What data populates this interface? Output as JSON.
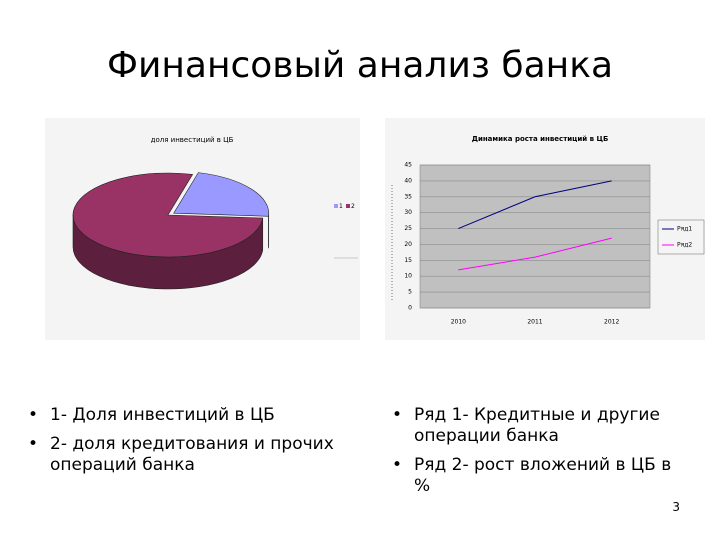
{
  "slide": {
    "title": "Финансовый анализ банка",
    "bullets_left": [
      "1- Доля инвестиций в ЦБ",
      "2- доля кредитования и прочих операций банка"
    ],
    "bullets_right": [
      "Ряд 1- Кредитные и другие операции банка",
      "Ряд 2- рост вложений в ЦБ в %"
    ],
    "page_number": 3
  },
  "chart_data": [
    {
      "type": "pie",
      "title": "доля инвестиций в ЦБ",
      "categories": [
        "1",
        "2"
      ],
      "values": [
        22,
        78
      ],
      "colors": [
        "#9999ff",
        "#993366"
      ],
      "legend": "right"
    },
    {
      "type": "line",
      "title": "Динамика роста инвестиций в ЦБ",
      "categories": [
        "2010",
        "2011",
        "2012"
      ],
      "series": [
        {
          "name": "Ряд1",
          "color": "#000080",
          "values": [
            25,
            35,
            40
          ]
        },
        {
          "name": "Ряд2",
          "color": "#ff00ff",
          "values": [
            12,
            16,
            22
          ]
        }
      ],
      "ylim": [
        0,
        45
      ],
      "yticks": [
        0,
        5,
        10,
        15,
        20,
        25,
        30,
        35,
        40,
        45
      ],
      "grid": true,
      "legend": "right"
    }
  ]
}
